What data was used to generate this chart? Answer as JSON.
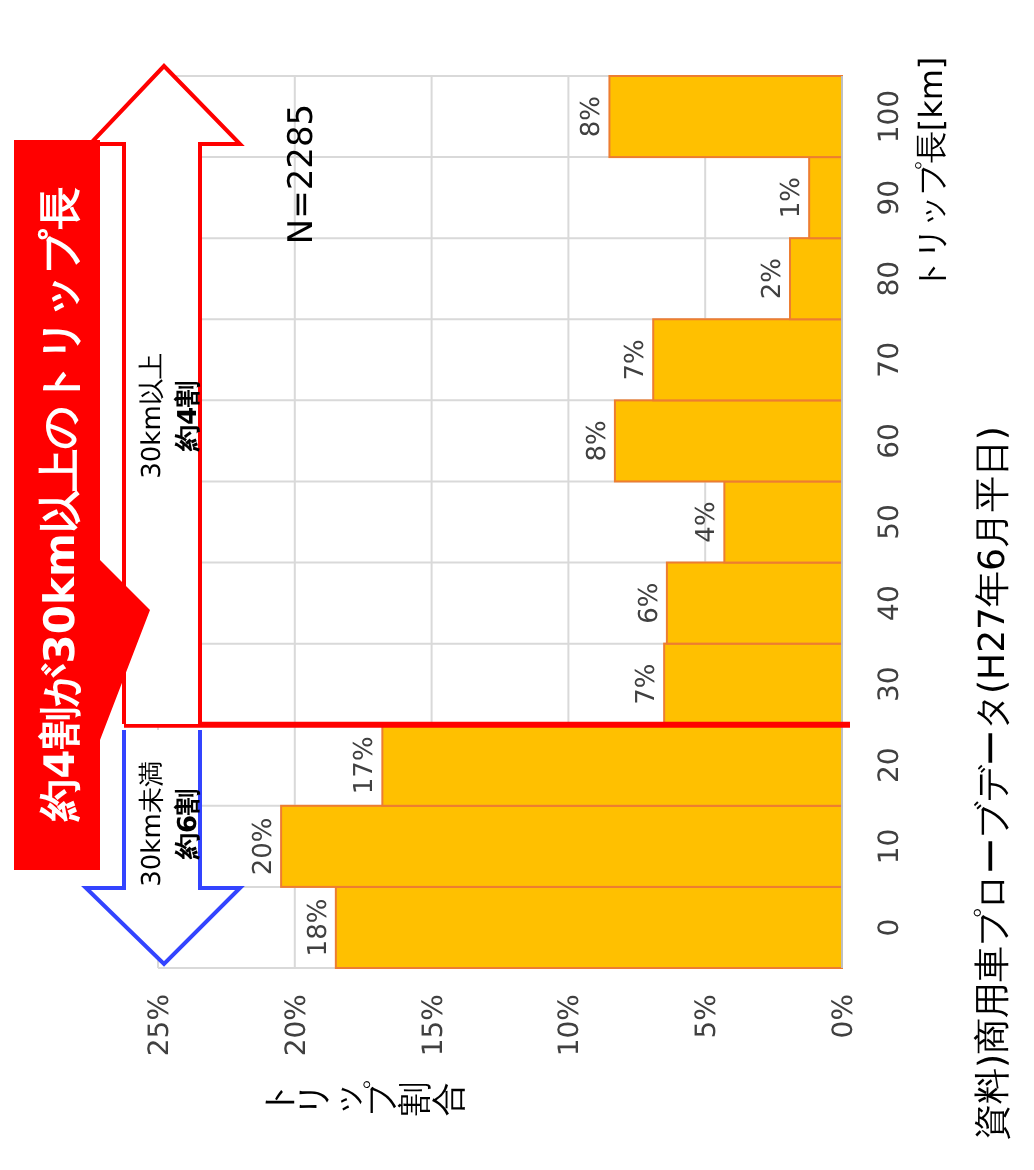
{
  "chart_data": {
    "type": "bar",
    "orientation": "horizontal",
    "title": "約4割が30km以上のトリップ長",
    "ylabel": "トリップ長[km]",
    "xlabel": "トリップ割合",
    "x": [
      0,
      10,
      20,
      30,
      40,
      50,
      60,
      70,
      80,
      90,
      100
    ],
    "values": [
      18.5,
      20.5,
      16.8,
      6.5,
      6.4,
      4.3,
      8.3,
      6.9,
      1.9,
      1.2,
      8.5
    ],
    "value_labels": [
      "18%",
      "20%",
      "17%",
      "7%",
      "6%",
      "4%",
      "8%",
      "7%",
      "2%",
      "1%",
      "8%"
    ],
    "color": "#ffc000",
    "ylim": [
      -5,
      105
    ],
    "yticks": [
      0,
      10,
      20,
      30,
      40,
      50,
      60,
      70,
      80,
      90,
      100
    ],
    "xlim": [
      25,
      0
    ],
    "xticks": [
      {
        "value": 25,
        "label": "25%"
      },
      {
        "value": 20,
        "label": "20%"
      },
      {
        "value": 15,
        "label": "15%"
      },
      {
        "value": 10,
        "label": "10%"
      },
      {
        "value": 5,
        "label": "5%"
      },
      {
        "value": 0,
        "label": "0%"
      }
    ],
    "grid": true,
    "ref_lines": [
      {
        "axis": "y",
        "value": 25,
        "color": "#ff0000"
      }
    ],
    "annotations": [
      "N=2285",
      "30km以上",
      "約4割",
      "30km未満",
      "約6割",
      "資料)商用車プローブデータ(H27年6月平日)"
    ]
  }
}
